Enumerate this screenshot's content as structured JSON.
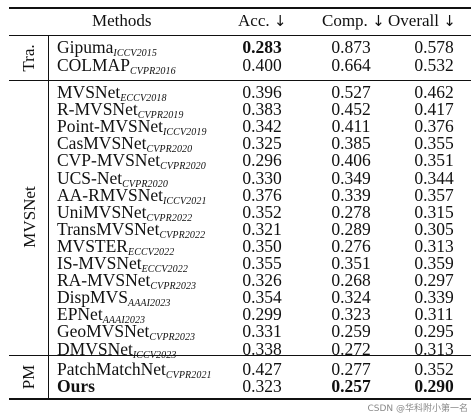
{
  "header": {
    "methods": "Methods",
    "acc": "Acc.",
    "comp": "Comp.",
    "overall": "Overall",
    "arrow": "↓"
  },
  "groups": [
    {
      "label": "Tra."
    },
    {
      "label": "MVSNet"
    },
    {
      "label": "PM"
    }
  ],
  "rows": [
    {
      "name": "Gipuma",
      "venue": "ICCV2015",
      "acc": "0.283",
      "comp": "0.873",
      "overall": "0.578",
      "bold": {
        "name": false,
        "acc": true,
        "comp": false,
        "overall": false
      }
    },
    {
      "name": "COLMAP",
      "venue": "CVPR2016",
      "acc": "0.400",
      "comp": "0.664",
      "overall": "0.532",
      "bold": {
        "name": false,
        "acc": false,
        "comp": false,
        "overall": false
      }
    },
    {
      "name": "MVSNet",
      "venue": "ECCV2018",
      "acc": "0.396",
      "comp": "0.527",
      "overall": "0.462",
      "bold": {
        "name": false,
        "acc": false,
        "comp": false,
        "overall": false
      }
    },
    {
      "name": "R-MVSNet",
      "venue": "CVPR2019",
      "acc": "0.383",
      "comp": "0.452",
      "overall": "0.417",
      "bold": {
        "name": false,
        "acc": false,
        "comp": false,
        "overall": false
      }
    },
    {
      "name": "Point-MVSNet",
      "venue": "ICCV2019",
      "acc": "0.342",
      "comp": "0.411",
      "overall": "0.376",
      "bold": {
        "name": false,
        "acc": false,
        "comp": false,
        "overall": false
      }
    },
    {
      "name": "CasMVSNet",
      "venue": "CVPR2020",
      "acc": "0.325",
      "comp": "0.385",
      "overall": "0.355",
      "bold": {
        "name": false,
        "acc": false,
        "comp": false,
        "overall": false
      }
    },
    {
      "name": "CVP-MVSNet",
      "venue": "CVPR2020",
      "acc": "0.296",
      "comp": "0.406",
      "overall": "0.351",
      "bold": {
        "name": false,
        "acc": false,
        "comp": false,
        "overall": false
      }
    },
    {
      "name": "UCS-Net",
      "venue": "CVPR2020",
      "acc": "0.330",
      "comp": "0.349",
      "overall": "0.344",
      "bold": {
        "name": false,
        "acc": false,
        "comp": false,
        "overall": false
      }
    },
    {
      "name": "AA-RMVSNet",
      "venue": "ICCV2021",
      "acc": "0.376",
      "comp": "0.339",
      "overall": "0.357",
      "bold": {
        "name": false,
        "acc": false,
        "comp": false,
        "overall": false
      }
    },
    {
      "name": "UniMVSNet",
      "venue": "CVPR2022",
      "acc": "0.352",
      "comp": "0.278",
      "overall": "0.315",
      "bold": {
        "name": false,
        "acc": false,
        "comp": false,
        "overall": false
      }
    },
    {
      "name": "TransMVSNet",
      "venue": "CVPR2022",
      "acc": "0.321",
      "comp": "0.289",
      "overall": "0.305",
      "bold": {
        "name": false,
        "acc": false,
        "comp": false,
        "overall": false
      }
    },
    {
      "name": "MVSTER",
      "venue": "ECCV2022",
      "acc": "0.350",
      "comp": "0.276",
      "overall": "0.313",
      "bold": {
        "name": false,
        "acc": false,
        "comp": false,
        "overall": false
      }
    },
    {
      "name": "IS-MVSNet",
      "venue": "ECCV2022",
      "acc": "0.355",
      "comp": "0.351",
      "overall": "0.359",
      "bold": {
        "name": false,
        "acc": false,
        "comp": false,
        "overall": false
      }
    },
    {
      "name": "RA-MVSNet",
      "venue": "CVPR2023",
      "acc": "0.326",
      "comp": "0.268",
      "overall": "0.297",
      "bold": {
        "name": false,
        "acc": false,
        "comp": false,
        "overall": false
      }
    },
    {
      "name": "DispMVS",
      "venue": "AAAI2023",
      "acc": "0.354",
      "comp": "0.324",
      "overall": "0.339",
      "bold": {
        "name": false,
        "acc": false,
        "comp": false,
        "overall": false
      }
    },
    {
      "name": "EPNet",
      "venue": "AAAI2023",
      "acc": "0.299",
      "comp": "0.323",
      "overall": "0.311",
      "bold": {
        "name": false,
        "acc": false,
        "comp": false,
        "overall": false
      }
    },
    {
      "name": "GeoMVSNet",
      "venue": "CVPR2023",
      "acc": "0.331",
      "comp": "0.259",
      "overall": "0.295",
      "bold": {
        "name": false,
        "acc": false,
        "comp": false,
        "overall": false
      }
    },
    {
      "name": "DMVSNet",
      "venue": "ICCV2023",
      "acc": "0.338",
      "comp": "0.272",
      "overall": "0.313",
      "bold": {
        "name": false,
        "acc": false,
        "comp": false,
        "overall": false
      }
    },
    {
      "name": "PatchMatchNet",
      "venue": "CVPR2021",
      "acc": "0.427",
      "comp": "0.277",
      "overall": "0.352",
      "bold": {
        "name": false,
        "acc": false,
        "comp": false,
        "overall": false
      }
    },
    {
      "name": "Ours",
      "venue": "",
      "acc": "0.323",
      "comp": "0.257",
      "overall": "0.290",
      "bold": {
        "name": true,
        "acc": false,
        "comp": true,
        "overall": true
      }
    }
  ],
  "watermark": "CSDN @华科附小第一名"
}
